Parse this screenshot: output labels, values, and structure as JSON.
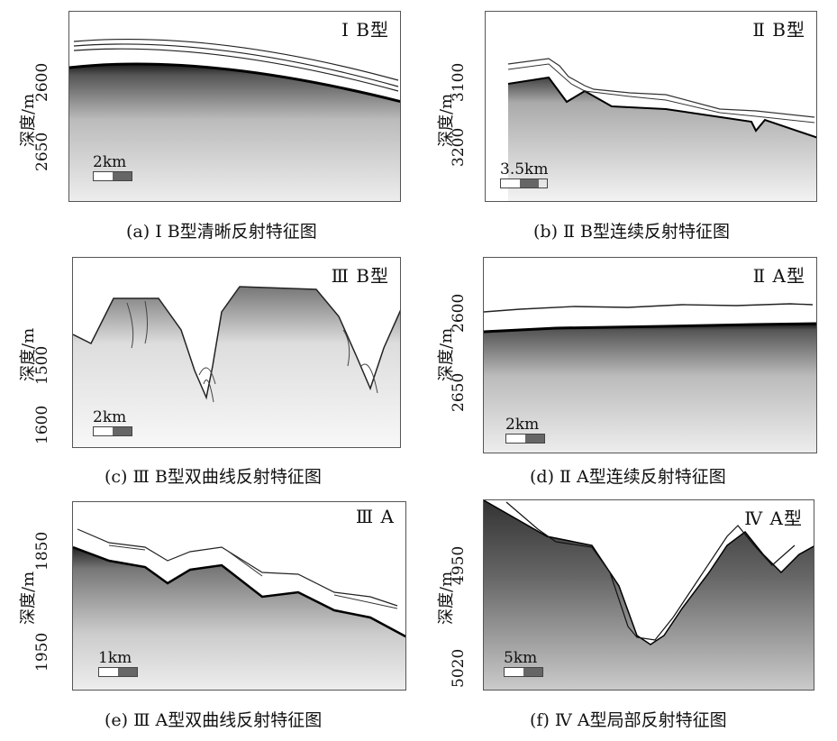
{
  "ylabel": "深度/m",
  "panels": [
    {
      "id": "a",
      "type_label": "Ⅰ B型",
      "caption": "(a) Ⅰ B型清晰反射特征图",
      "ticks": [
        "2600",
        "2650"
      ],
      "scale": "2km"
    },
    {
      "id": "b",
      "type_label": "Ⅱ B型",
      "caption": "(b) Ⅱ B型连续反射特征图",
      "ticks": [
        "3100",
        "3200"
      ],
      "scale": "3.5km"
    },
    {
      "id": "c",
      "type_label": "Ⅲ B型",
      "caption": "(c) Ⅲ B型双曲线反射特征图",
      "ticks": [
        "1500",
        "1600"
      ],
      "scale": "2km"
    },
    {
      "id": "d",
      "type_label": "Ⅱ A型",
      "caption": "(d) Ⅱ A型连续反射特征图",
      "ticks": [
        "2600",
        "2650"
      ],
      "scale": "2km"
    },
    {
      "id": "e",
      "type_label": "Ⅲ A",
      "caption": "(e) Ⅲ A型双曲线反射特征图",
      "ticks": [
        "1850",
        "1950"
      ],
      "scale": "1km"
    },
    {
      "id": "f",
      "type_label": "Ⅳ A型",
      "caption": "(f) Ⅳ A型局部反射特征图",
      "ticks": [
        "4950",
        "5020"
      ],
      "scale": "5km"
    }
  ]
}
